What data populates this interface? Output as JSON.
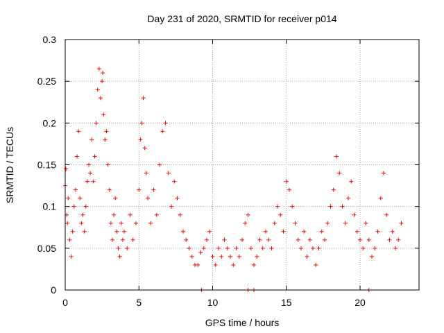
{
  "chart_data": {
    "type": "scatter",
    "title": "Day 231 of 2020, SRMTID for receiver p014",
    "xlabel": "GPS time / hours",
    "ylabel": "SRMTID / TECUs",
    "xlim": [
      0,
      24
    ],
    "ylim": [
      0,
      0.3
    ],
    "x_ticks": [
      0,
      5,
      10,
      15,
      20
    ],
    "x_tick_labels": [
      "0",
      "5",
      "10",
      "15",
      "20"
    ],
    "y_ticks": [
      0,
      0.05,
      0.1,
      0.15,
      0.2,
      0.25,
      0.3
    ],
    "y_tick_labels": [
      "0",
      "0.05",
      "0.1",
      "0.15",
      "0.2",
      "0.25",
      "0.3"
    ],
    "grid": true,
    "marker": "+",
    "colors": {
      "series": "#ff0000",
      "grid": "#a0a0a0",
      "axes": "#000000"
    },
    "series": [
      {
        "name": "SRMTID",
        "x": [
          0.0,
          0.05,
          0.1,
          0.15,
          0.2,
          0.3,
          0.4,
          0.5,
          0.6,
          0.7,
          0.8,
          0.9,
          1.0,
          1.1,
          1.2,
          1.3,
          1.4,
          1.5,
          1.6,
          1.7,
          1.8,
          1.9,
          2.0,
          2.1,
          2.2,
          2.3,
          2.4,
          2.5,
          2.55,
          2.6,
          2.7,
          2.8,
          2.9,
          3.0,
          3.1,
          3.2,
          3.3,
          3.4,
          3.5,
          3.6,
          3.7,
          3.8,
          3.9,
          4.0,
          4.2,
          4.4,
          4.6,
          4.8,
          5.0,
          5.1,
          5.2,
          5.3,
          5.4,
          5.5,
          5.6,
          5.8,
          6.0,
          6.2,
          6.4,
          6.6,
          6.8,
          7.0,
          7.2,
          7.4,
          7.6,
          7.8,
          8.0,
          8.2,
          8.4,
          8.6,
          8.8,
          9.0,
          9.2,
          9.4,
          9.6,
          9.8,
          10.0,
          10.2,
          10.4,
          10.6,
          10.8,
          11.0,
          11.2,
          11.4,
          11.6,
          11.8,
          12.0,
          12.2,
          12.4,
          12.6,
          12.8,
          13.0,
          13.2,
          13.4,
          13.6,
          13.8,
          14.0,
          14.2,
          14.4,
          14.6,
          14.8,
          15.0,
          15.2,
          15.4,
          15.6,
          15.8,
          16.0,
          16.2,
          16.4,
          16.6,
          16.8,
          17.0,
          17.2,
          17.4,
          17.6,
          17.8,
          18.0,
          18.2,
          18.4,
          18.6,
          18.8,
          19.0,
          19.2,
          19.4,
          19.6,
          19.8,
          20.0,
          20.2,
          20.4,
          20.6,
          20.8,
          21.0,
          21.2,
          21.4,
          21.6,
          21.8,
          22.0,
          22.2,
          22.4,
          22.6,
          22.8,
          9.25,
          12.4,
          12.8,
          20.6
        ],
        "y": [
          0.125,
          0.145,
          0.09,
          0.08,
          0.11,
          0.06,
          0.04,
          0.07,
          0.1,
          0.12,
          0.16,
          0.19,
          0.11,
          0.08,
          0.09,
          0.07,
          0.1,
          0.13,
          0.15,
          0.14,
          0.18,
          0.13,
          0.16,
          0.2,
          0.24,
          0.265,
          0.23,
          0.25,
          0.26,
          0.21,
          0.18,
          0.19,
          0.15,
          0.12,
          0.08,
          0.06,
          0.09,
          0.11,
          0.07,
          0.05,
          0.04,
          0.08,
          0.06,
          0.07,
          0.05,
          0.09,
          0.06,
          0.08,
          0.12,
          0.18,
          0.2,
          0.23,
          0.17,
          0.14,
          0.11,
          0.08,
          0.12,
          0.09,
          0.15,
          0.19,
          0.2,
          0.14,
          0.1,
          0.13,
          0.11,
          0.09,
          0.07,
          0.06,
          0.05,
          0.04,
          0.03,
          0.03,
          0.045,
          0.05,
          0.06,
          0.07,
          0.04,
          0.03,
          0.05,
          0.04,
          0.06,
          0.05,
          0.04,
          0.03,
          0.05,
          0.04,
          0.06,
          0.08,
          0.09,
          0.05,
          0.03,
          0.04,
          0.06,
          0.05,
          0.07,
          0.06,
          0.05,
          0.08,
          0.1,
          0.09,
          0.07,
          0.13,
          0.12,
          0.1,
          0.08,
          0.06,
          0.05,
          0.07,
          0.04,
          0.06,
          0.05,
          0.03,
          0.05,
          0.07,
          0.06,
          0.08,
          0.1,
          0.12,
          0.16,
          0.14,
          0.1,
          0.08,
          0.11,
          0.13,
          0.09,
          0.07,
          0.06,
          0.05,
          0.08,
          0.06,
          0.04,
          0.05,
          0.07,
          0.11,
          0.14,
          0.09,
          0.06,
          0.07,
          0.05,
          0.06,
          0.08,
          0.0,
          0.0,
          0.0,
          0.0
        ]
      }
    ]
  }
}
